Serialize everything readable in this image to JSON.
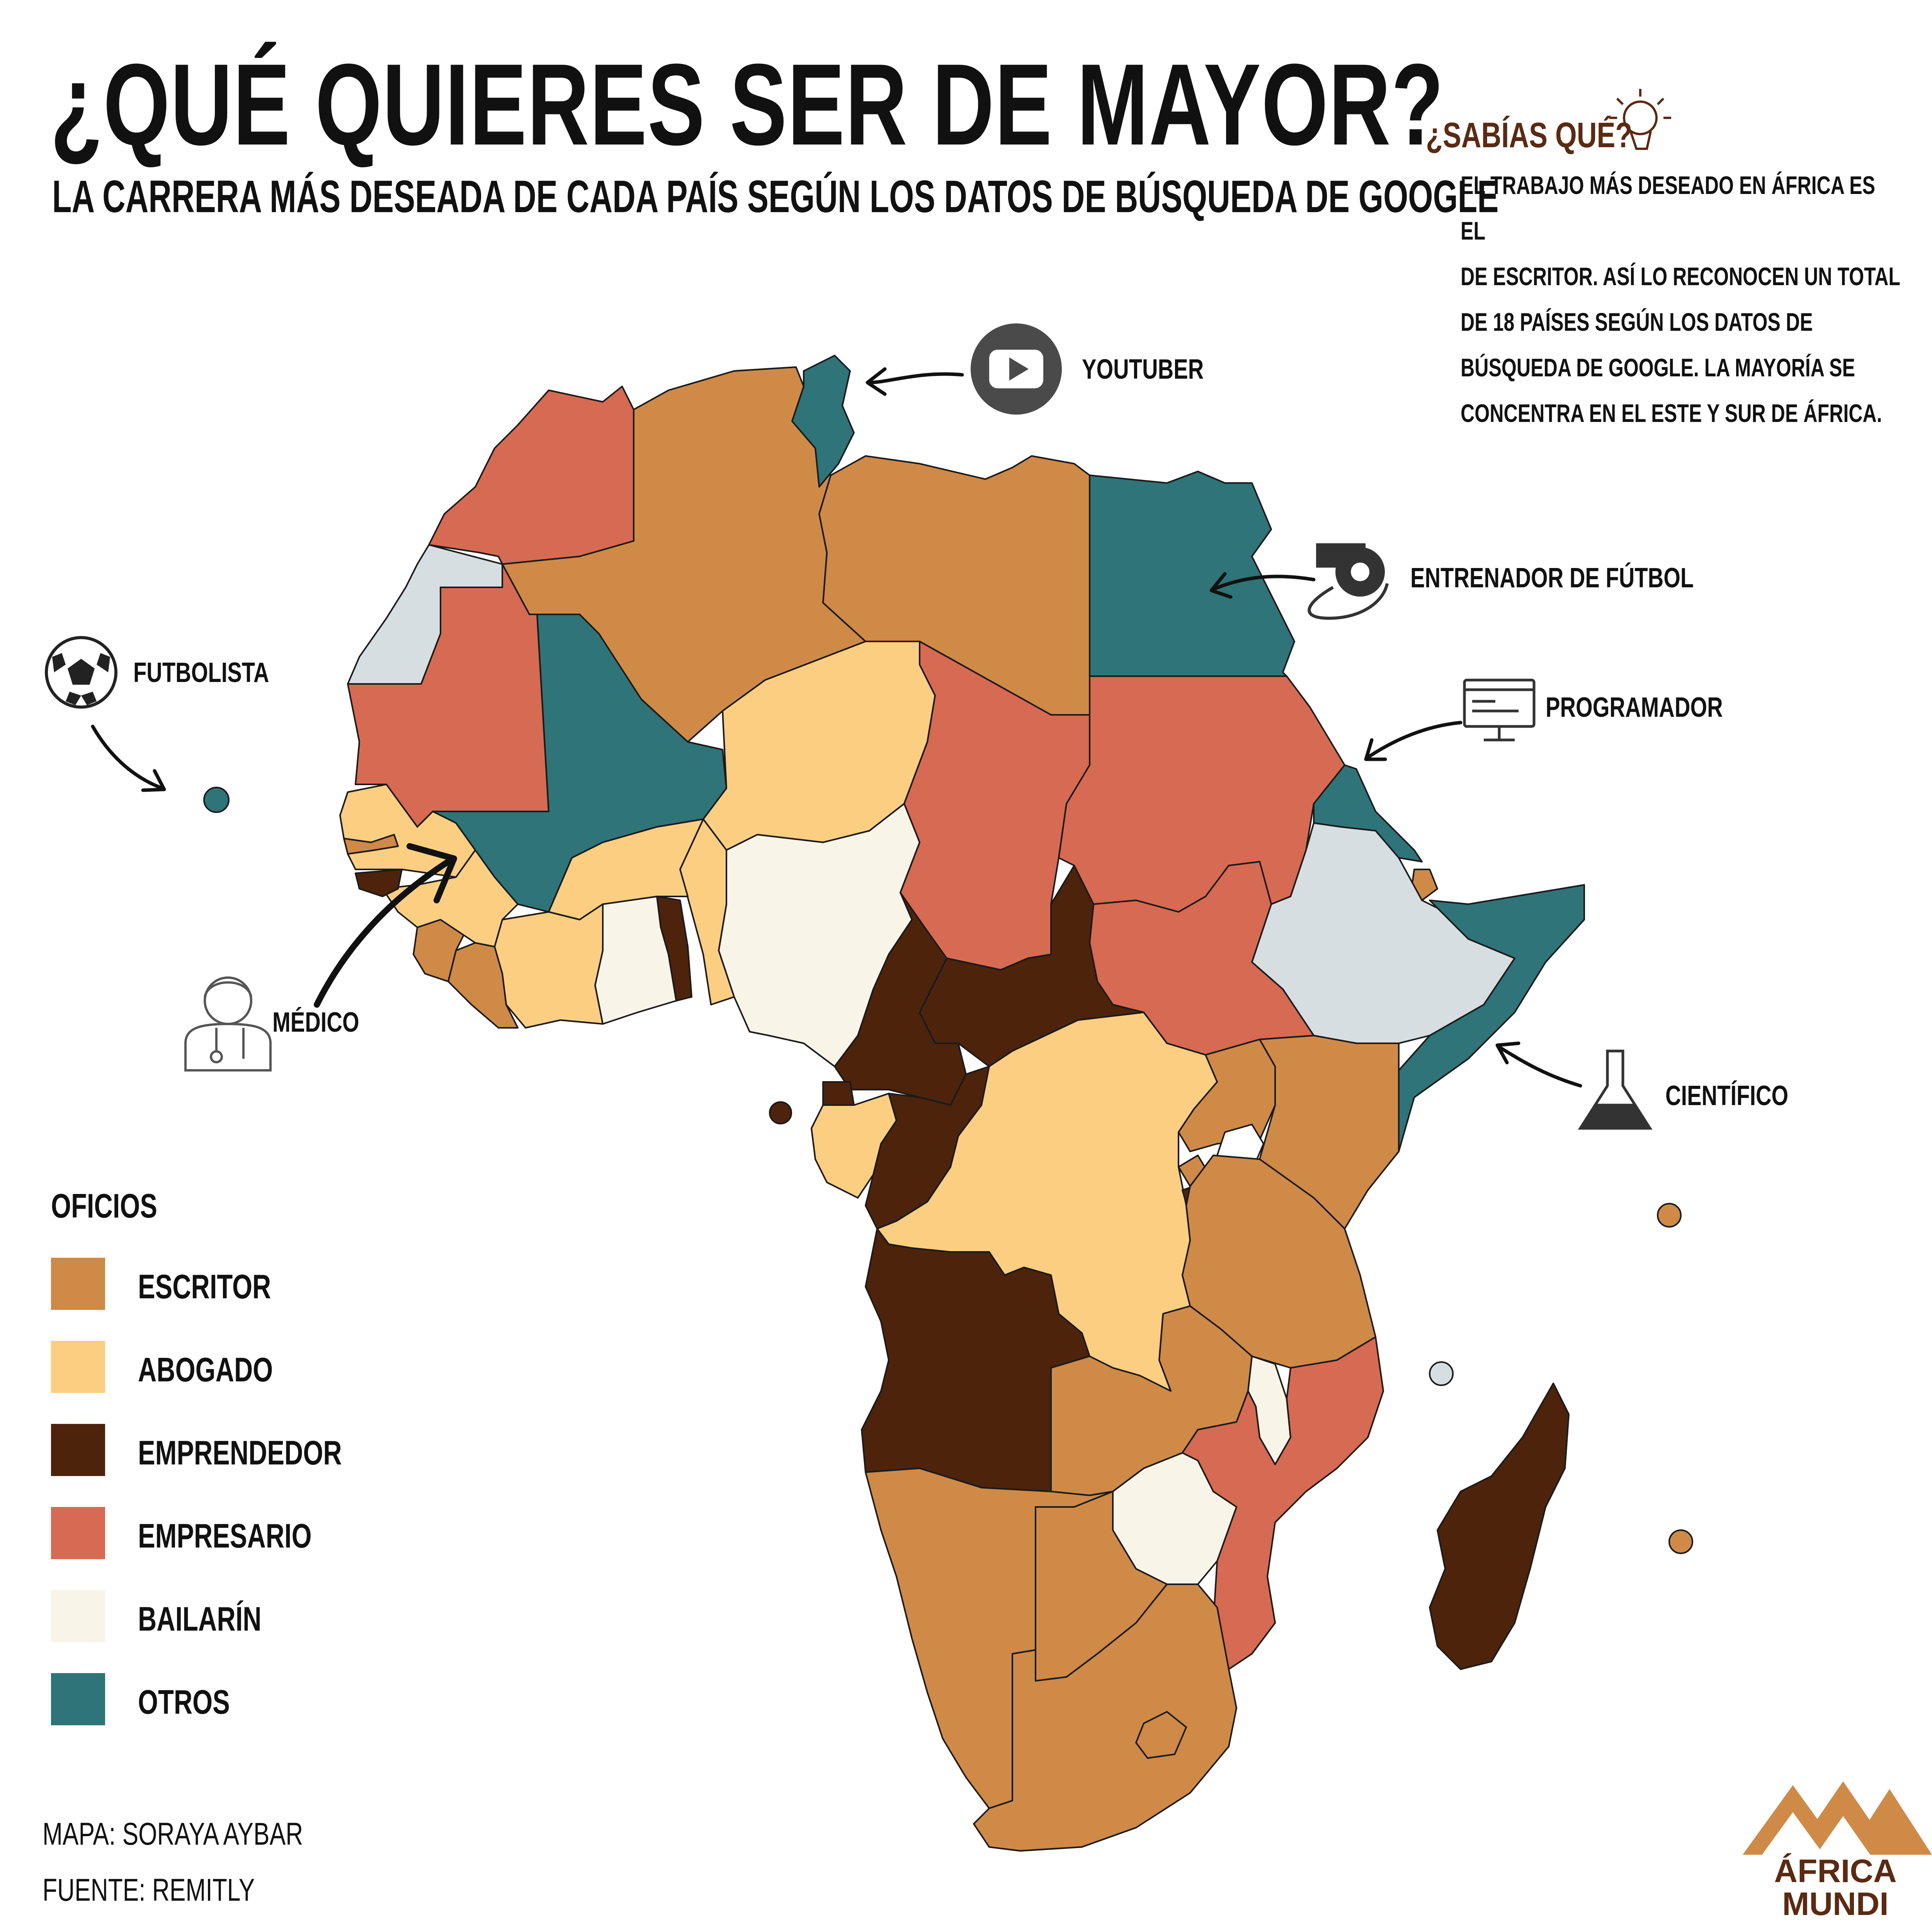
{
  "title": "¿QUÉ QUIERES SER DE MAYOR?",
  "subtitle": "LA CARRERA MÁS DESEADA DE CADA PAÍS SEGÚN LOS DATOS DE BÚSQUEDA DE GOOGLE",
  "fact": {
    "title": "¿SABÍAS QUÉ?",
    "lines": [
      "EL TRABAJO MÁS DESEADO EN ÁFRICA ES EL",
      "DE ESCRITOR. ASÍ LO RECONOCEN UN TOTAL",
      "DE 18 PAÍSES SEGÚN LOS DATOS DE",
      "BÚSQUEDA DE GOOGLE. LA MAYORÍA SE",
      "CONCENTRA EN EL ESTE Y SUR DE ÁFRICA."
    ]
  },
  "callouts": {
    "youtuber": "YOUTUBER",
    "coach": "ENTRENADOR DE FÚTBOL",
    "programmer": "PROGRAMADOR",
    "scientist": "CIENTÍFICO",
    "footballer": "FUTBOLISTA",
    "doctor": "MÉDICO"
  },
  "legend": {
    "title": "OFICIOS",
    "items": [
      {
        "label": "ESCRITOR",
        "color": "#cf8a48"
      },
      {
        "label": "ABOGADO",
        "color": "#fcce82"
      },
      {
        "label": "EMPRENDEDOR",
        "color": "#4d230c"
      },
      {
        "label": "EMPRESARIO",
        "color": "#d76a52"
      },
      {
        "label": "BAILARÍN",
        "color": "#f8f4e8"
      },
      {
        "label": "OTROS",
        "color": "#2e7478"
      }
    ]
  },
  "other_color": "#d6dee2",
  "credits": {
    "map": "MAPA: SORAYA AYBAR",
    "source": "FUENTE: REMITLY"
  },
  "logo": {
    "line1": "ÁFRICA",
    "line2": "MUNDI"
  }
}
